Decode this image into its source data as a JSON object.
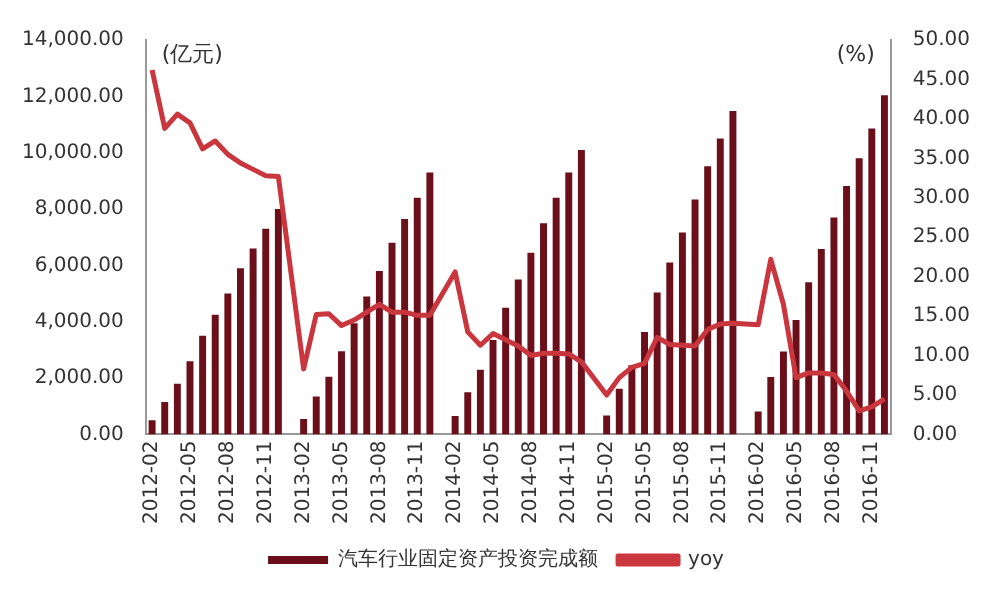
{
  "chart_data": {
    "type": "bar",
    "ylabel": "(亿元)",
    "y2label": "(%)",
    "categories": [
      "2012-02",
      null,
      null,
      "2012-05",
      null,
      null,
      "2012-08",
      null,
      null,
      "2012-11",
      null,
      null,
      "2013-02",
      null,
      null,
      "2013-05",
      null,
      null,
      "2013-08",
      null,
      null,
      "2013-11",
      null,
      null,
      "2014-02",
      null,
      null,
      "2014-05",
      null,
      null,
      "2014-08",
      null,
      null,
      "2014-11",
      null,
      null,
      "2015-02",
      null,
      null,
      "2015-05",
      null,
      null,
      "2015-08",
      null,
      null,
      "2015-11",
      null,
      null,
      "2016-02",
      null,
      null,
      "2016-05",
      null,
      null,
      "2016-08",
      null,
      null,
      "2016-11",
      null
    ],
    "series": [
      {
        "name": "汽车行业固定资产投资完成额",
        "color": "#6b0f1a",
        "values": [
          500,
          1150,
          1800,
          2600,
          3500,
          4250,
          5000,
          5900,
          6600,
          7300,
          8000,
          null,
          550,
          1350,
          2050,
          2950,
          3950,
          4900,
          5800,
          6800,
          7650,
          8400,
          9300,
          null,
          650,
          1500,
          2300,
          3350,
          4500,
          5500,
          6450,
          7500,
          8400,
          9300,
          10100,
          null,
          670,
          1620,
          2460,
          3640,
          5040,
          6100,
          7170,
          8340,
          9520,
          10500,
          11480,
          null,
          810,
          2040,
          2940,
          4060,
          5400,
          6580,
          7700,
          8820,
          9800,
          10860,
          12040
        ]
      },
      {
        "name": "yoy",
        "type": "line",
        "axis": "y2",
        "color": "#c9363e",
        "values": [
          46.2,
          38.8,
          40.6,
          39.5,
          36.2,
          37.2,
          35.5,
          34.4,
          33.6,
          32.8,
          32.7,
          null,
          8.3,
          15.2,
          15.3,
          13.8,
          14.5,
          15.5,
          16.5,
          15.5,
          15.5,
          15.1,
          15.1,
          null,
          20.6,
          13,
          11.3,
          12.8,
          12,
          11.2,
          10,
          10.3,
          10.3,
          10.2,
          9.2,
          null,
          5,
          7.2,
          8.5,
          9,
          12.3,
          11.4,
          11.3,
          11.2,
          13.3,
          14,
          14.1,
          null,
          13.9,
          22.2,
          16.5,
          7.2,
          7.8,
          7.8,
          7.6,
          5.5,
          3,
          3.5,
          4.5
        ]
      }
    ],
    "ylim": [
      0,
      14000
    ],
    "yticks": [
      {
        "value": 0,
        "label": "0.00"
      },
      {
        "value": 2000,
        "label": "2,000.00"
      },
      {
        "value": 4000,
        "label": "4,000.00"
      },
      {
        "value": 6000,
        "label": "6,000.00"
      },
      {
        "value": 8000,
        "label": "8,000.00"
      },
      {
        "value": 10000,
        "label": "10,000.00"
      },
      {
        "value": 12000,
        "label": "12,000.00"
      },
      {
        "value": 14000,
        "label": "14,000.00"
      }
    ],
    "y2lim": [
      0,
      50
    ],
    "y2ticks": [
      {
        "value": 0,
        "label": "0.00"
      },
      {
        "value": 5,
        "label": "5.00"
      },
      {
        "value": 10,
        "label": "10.00"
      },
      {
        "value": 15,
        "label": "15.00"
      },
      {
        "value": 20,
        "label": "20.00"
      },
      {
        "value": 25,
        "label": "25.00"
      },
      {
        "value": 30,
        "label": "30.00"
      },
      {
        "value": 35,
        "label": "35.00"
      },
      {
        "value": 40,
        "label": "40.00"
      },
      {
        "value": 45,
        "label": "45.00"
      },
      {
        "value": 50,
        "label": "50.00"
      }
    ],
    "grid": false,
    "legend": "bottom"
  }
}
